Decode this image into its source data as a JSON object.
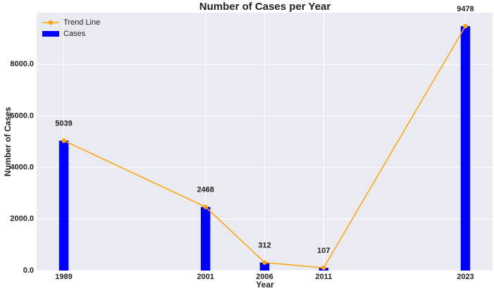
{
  "chart_data": {
    "type": "bar",
    "title": "Number of Cases per Year",
    "xlabel": "Year",
    "ylabel": "Number of Cases",
    "x": [
      1989,
      2001,
      2006,
      2011,
      2023
    ],
    "series": [
      {
        "name": "Trend Line",
        "type": "line",
        "color": "#ffa500",
        "values": [
          5039,
          2468,
          312,
          107,
          9478
        ]
      },
      {
        "name": "Cases",
        "type": "bar",
        "color": "#0000ff",
        "values": [
          5039,
          2468,
          312,
          107,
          9478
        ],
        "value_labels": true
      }
    ],
    "xlim": [
      1986.7,
      2025.3
    ],
    "ylim": [
      0,
      10000
    ],
    "xticks": [
      1989,
      2001,
      2006,
      2011,
      2023
    ],
    "yticks": [
      {
        "value": 0,
        "label": "0.0"
      },
      {
        "value": 2000,
        "label": "2000.0"
      },
      {
        "value": 4000,
        "label": "4000.0"
      },
      {
        "value": 6000,
        "label": "6000.0"
      },
      {
        "value": 8000,
        "label": "8000.0"
      }
    ],
    "grid": true,
    "legend": "upper left"
  }
}
